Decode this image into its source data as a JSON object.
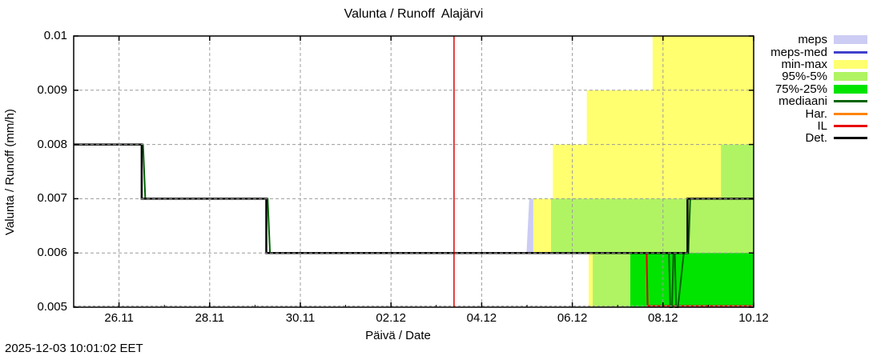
{
  "page": {
    "timestamp": "2025-12-03 10:01:02 EET"
  },
  "chart_data": {
    "type": "area",
    "title": "Valunta / Runoff  Alajärvi",
    "xlabel": "Päivä / Date",
    "ylabel": "Valunta / Runoff (mm/h)",
    "ylim": [
      0.005,
      0.01
    ],
    "y_ticks": [
      {
        "v": 0.005,
        "label": "0.005"
      },
      {
        "v": 0.006,
        "label": "0.006"
      },
      {
        "v": 0.007,
        "label": "0.007"
      },
      {
        "v": 0.008,
        "label": "0.008"
      },
      {
        "v": 0.009,
        "label": "0.009"
      },
      {
        "v": 0.01,
        "label": "0.01"
      }
    ],
    "x_unit": "days_from_left_edge",
    "x_range_days": [
      0,
      15
    ],
    "x_ticks": [
      {
        "day": 1,
        "label": "26.11"
      },
      {
        "day": 3,
        "label": "28.11"
      },
      {
        "day": 5,
        "label": "30.11"
      },
      {
        "day": 7,
        "label": "02.12"
      },
      {
        "day": 9,
        "label": "04.12"
      },
      {
        "day": 11,
        "label": "06.12"
      },
      {
        "day": 13,
        "label": "08.12"
      },
      {
        "day": 15,
        "label": "10.12"
      }
    ],
    "x_minor_days": [
      0,
      2,
      4,
      6,
      8,
      10,
      12,
      14
    ],
    "grid": true,
    "colors": {
      "grid": "#9c9c9c",
      "meps": "#ccccf4",
      "meps_med": "#4040cc",
      "min_max": "#ffff70",
      "p95_5": "#b0f464",
      "p75_25": "#00e400",
      "mediaani": "#006400",
      "har": "#ff8400",
      "il": "#e80000",
      "det": "#000000",
      "now_line": "#e00000"
    },
    "bands": [
      {
        "name": "meps",
        "color": "#ccccf4",
        "upper": [
          [
            10.05,
            0.007
          ],
          [
            10.14,
            0.007
          ]
        ],
        "lower": [
          [
            9.99,
            0.006
          ],
          [
            10.14,
            0.006
          ]
        ]
      },
      {
        "name": "min-max",
        "color": "#ffff70",
        "upper": [
          [
            10.14,
            0.007
          ],
          [
            10.57,
            0.007
          ],
          [
            10.57,
            0.008
          ],
          [
            11.32,
            0.008
          ],
          [
            11.32,
            0.009
          ],
          [
            12.77,
            0.009
          ],
          [
            12.77,
            0.01
          ],
          [
            15,
            0.01
          ]
        ],
        "lower": [
          [
            10.14,
            0.006
          ],
          [
            11.36,
            0.006
          ],
          [
            11.36,
            0.005
          ],
          [
            15,
            0.005
          ]
        ]
      },
      {
        "name": "95%-5%",
        "color": "#b0f464",
        "upper": [
          [
            10.53,
            0.007
          ],
          [
            14.28,
            0.007
          ],
          [
            14.28,
            0.008
          ],
          [
            15,
            0.008
          ]
        ],
        "lower": [
          [
            10.53,
            0.006
          ],
          [
            11.45,
            0.006
          ],
          [
            11.45,
            0.005
          ],
          [
            15,
            0.005
          ]
        ]
      },
      {
        "name": "75%-25%",
        "color": "#00e400",
        "upper": [
          [
            12.28,
            0.006
          ],
          [
            15,
            0.006
          ]
        ],
        "lower": [
          [
            12.28,
            0.005
          ],
          [
            15,
            0.005
          ]
        ]
      }
    ],
    "lines": [
      {
        "name": "IL",
        "color": "#e80000",
        "width": 2,
        "points": [
          [
            8.39,
            0.006
          ],
          [
            12.64,
            0.006
          ],
          [
            12.66,
            0.005
          ],
          [
            15,
            0.005
          ]
        ]
      },
      {
        "name": "mediaani",
        "color": "#006400",
        "width": 2,
        "points": [
          [
            0,
            0.008
          ],
          [
            1.53,
            0.008
          ],
          [
            1.58,
            0.007
          ],
          [
            4.28,
            0.007
          ],
          [
            4.33,
            0.006
          ],
          [
            13.13,
            0.006
          ],
          [
            13.16,
            0.005
          ],
          [
            13.2,
            0.005
          ],
          [
            13.23,
            0.006
          ],
          [
            13.26,
            0.006
          ],
          [
            13.29,
            0.005
          ],
          [
            13.33,
            0.005
          ],
          [
            13.46,
            0.006
          ],
          [
            13.56,
            0.006
          ],
          [
            13.6,
            0.007
          ],
          [
            15,
            0.007
          ]
        ]
      },
      {
        "name": "Det.",
        "color": "#000000",
        "width": 2.5,
        "points": [
          [
            0,
            0.008
          ],
          [
            1.5,
            0.008
          ],
          [
            1.5,
            0.007
          ],
          [
            4.25,
            0.007
          ],
          [
            4.25,
            0.006
          ],
          [
            13.54,
            0.006
          ],
          [
            13.54,
            0.007
          ],
          [
            15,
            0.007
          ]
        ]
      }
    ],
    "now_line": {
      "day": 8.39,
      "color": "#e00000"
    },
    "legend": {
      "position": "outside-right-top",
      "items": [
        {
          "label": "meps",
          "type": "band",
          "color": "#ccccf4"
        },
        {
          "label": "meps-med",
          "type": "line",
          "color": "#4040cc"
        },
        {
          "label": "min-max",
          "type": "band",
          "color": "#ffff70"
        },
        {
          "label": "95%-5%",
          "type": "band",
          "color": "#b0f464"
        },
        {
          "label": "75%-25%",
          "type": "band",
          "color": "#00e400"
        },
        {
          "label": "mediaani",
          "type": "line",
          "color": "#006400"
        },
        {
          "label": "Har.",
          "type": "line",
          "color": "#ff8400"
        },
        {
          "label": "IL",
          "type": "line",
          "color": "#e80000"
        },
        {
          "label": "Det.",
          "type": "line",
          "color": "#000000"
        }
      ]
    }
  }
}
